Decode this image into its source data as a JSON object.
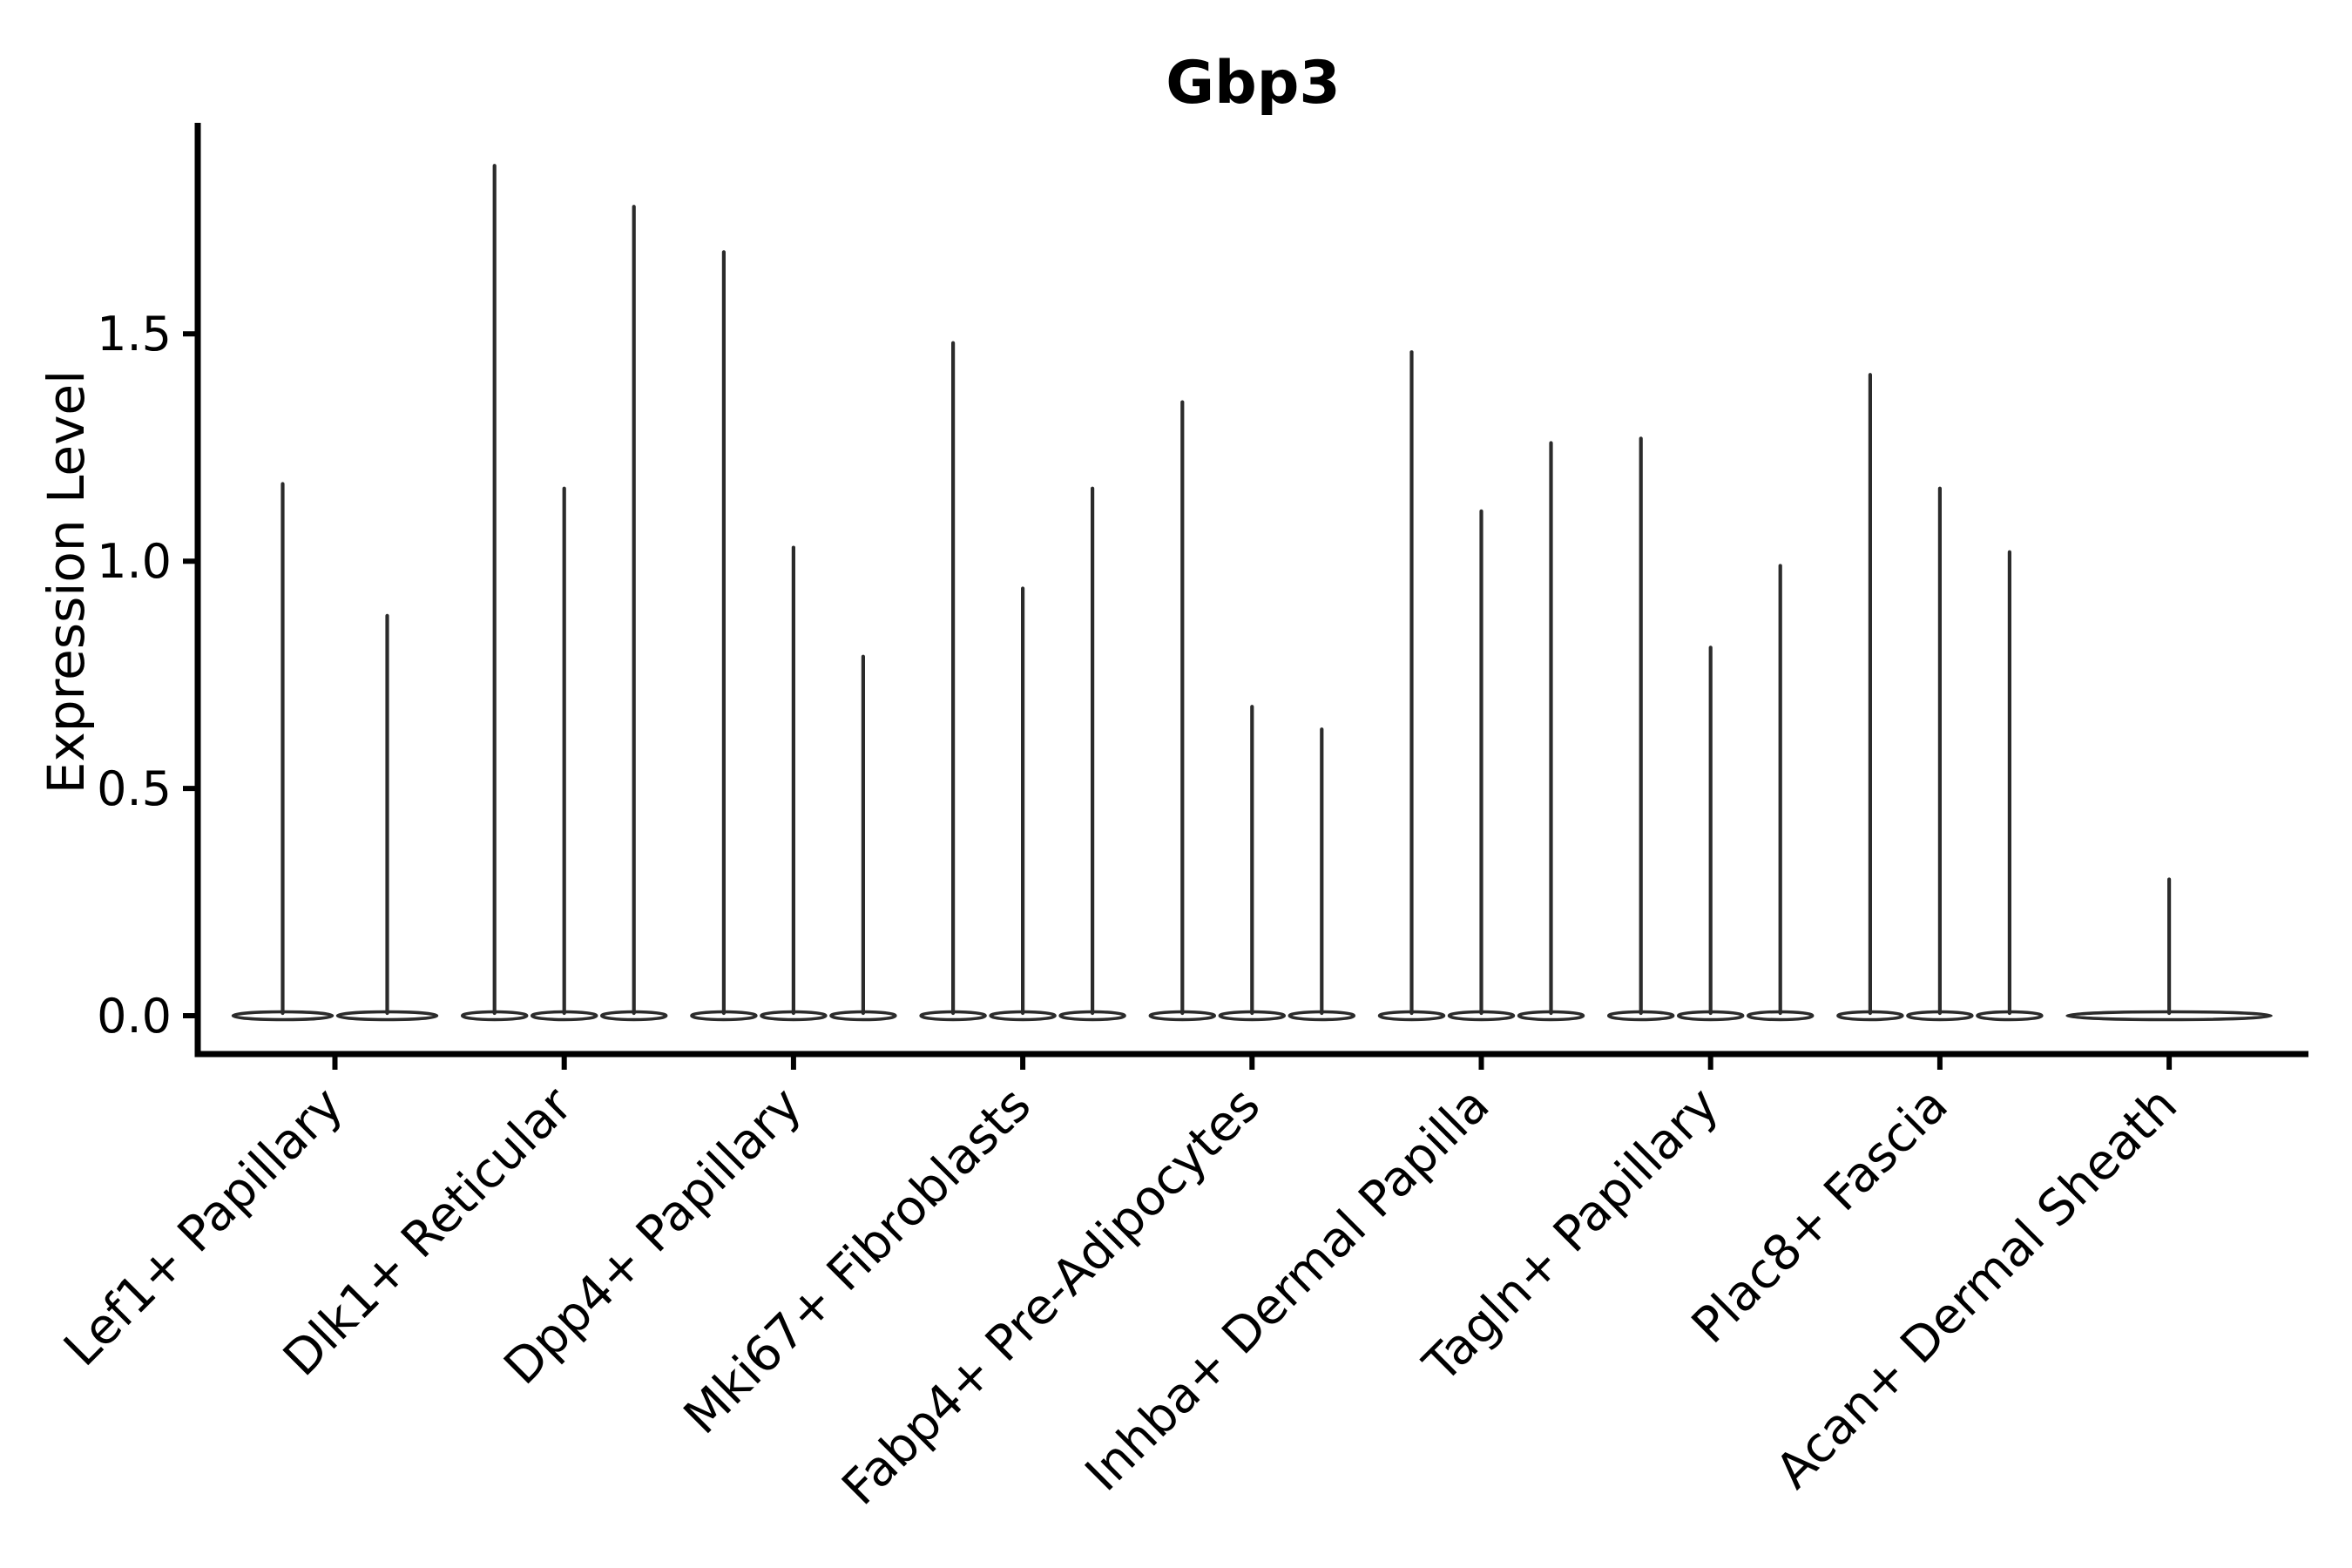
{
  "figure": {
    "title": "Gbp3",
    "ylabel": "Expression Level"
  },
  "chart_data": {
    "type": "violin",
    "title": "Gbp3",
    "xlabel": "",
    "ylabel": "Expression Level",
    "categories": [
      "Lef1+ Papillary",
      "Dlk1+ Reticular",
      "Dpp4+ Papillary",
      "Mki67+ Fibroblasts",
      "Fabp4+ Pre-Adipocytes",
      "Inhba+ Dermal Papilla",
      "Tagln+ Papillary",
      "Plac8+ Fascia",
      "Acan+ Dermal Sheath"
    ],
    "violins": [
      {
        "category": "Lef1+ Papillary",
        "max_values": [
          1.17,
          0.88
        ]
      },
      {
        "category": "Dlk1+ Reticular",
        "max_values": [
          1.87,
          1.16,
          1.78
        ]
      },
      {
        "category": "Dpp4+ Papillary",
        "max_values": [
          1.68,
          1.03,
          0.79
        ]
      },
      {
        "category": "Mki67+ Fibroblasts",
        "max_values": [
          1.48,
          0.94,
          1.16
        ]
      },
      {
        "category": "Fabp4+ Pre-Adipocytes",
        "max_values": [
          1.35,
          0.68,
          0.63
        ]
      },
      {
        "category": "Inhba+ Dermal Papilla",
        "max_values": [
          1.46,
          1.11,
          1.26
        ]
      },
      {
        "category": "Tagln+ Papillary",
        "max_values": [
          1.27,
          0.81,
          0.99
        ]
      },
      {
        "category": "Plac8+ Fascia",
        "max_values": [
          1.41,
          1.16,
          1.02
        ]
      },
      {
        "category": "Acan+ Dermal Sheath",
        "max_values": [
          0.3
        ]
      }
    ],
    "violin_shape_note": "expression density concentrated at 0 (flat wide base), thin spike tail up to max value",
    "y_ticks": [
      "0.0",
      "0.5",
      "1.0",
      "1.5"
    ],
    "ylim": [
      -0.08,
      1.96
    ],
    "grid": false,
    "legend_position": "none",
    "colors": {
      "violin_stroke": "#2b2b2b",
      "axis": "#000000",
      "text": "#000000",
      "background": "#ffffff"
    }
  }
}
